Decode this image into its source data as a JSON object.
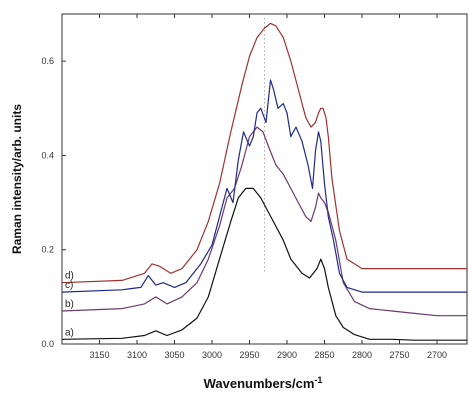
{
  "chart_data": {
    "type": "line",
    "xlabel": "Wavenumbers/cm",
    "xlabel_sup": "-1",
    "ylabel": "Raman intensity/arb. units",
    "xlim": [
      3200,
      2660
    ],
    "ylim": [
      0,
      0.7
    ],
    "x_reversed": true,
    "grid": false,
    "x_ticks": [
      3150,
      3100,
      3050,
      3000,
      2950,
      2900,
      2850,
      2800,
      2750,
      2700
    ],
    "y_ticks": [
      0.0,
      0.2,
      0.4,
      0.6
    ],
    "y_tick_labels": [
      "0.0",
      "0.2",
      "0.4",
      "0.6"
    ],
    "series": [
      {
        "name": "a)",
        "color": "#111111",
        "x": [
          3200,
          3120,
          3090,
          3075,
          3060,
          3040,
          3020,
          3005,
          2990,
          2975,
          2965,
          2955,
          2945,
          2935,
          2925,
          2915,
          2905,
          2895,
          2880,
          2870,
          2860,
          2855,
          2850,
          2845,
          2835,
          2825,
          2810,
          2790,
          2760,
          2730,
          2700,
          2660
        ],
        "y": [
          0.01,
          0.012,
          0.018,
          0.028,
          0.018,
          0.03,
          0.055,
          0.1,
          0.18,
          0.26,
          0.31,
          0.33,
          0.33,
          0.31,
          0.28,
          0.25,
          0.22,
          0.18,
          0.15,
          0.14,
          0.16,
          0.18,
          0.16,
          0.12,
          0.06,
          0.035,
          0.02,
          0.01,
          0.01,
          0.008,
          0.008,
          0.008
        ]
      },
      {
        "name": "b)",
        "color": "#6b3a6b",
        "x": [
          3200,
          3120,
          3090,
          3075,
          3060,
          3040,
          3020,
          3005,
          2990,
          2980,
          2970,
          2960,
          2950,
          2940,
          2932,
          2925,
          2915,
          2905,
          2895,
          2885,
          2875,
          2868,
          2862,
          2858,
          2855,
          2850,
          2845,
          2835,
          2825,
          2810,
          2790,
          2760,
          2730,
          2700,
          2660
        ],
        "y": [
          0.07,
          0.075,
          0.085,
          0.1,
          0.085,
          0.1,
          0.13,
          0.18,
          0.25,
          0.31,
          0.33,
          0.38,
          0.44,
          0.46,
          0.45,
          0.42,
          0.38,
          0.36,
          0.33,
          0.3,
          0.27,
          0.26,
          0.29,
          0.32,
          0.31,
          0.3,
          0.28,
          0.22,
          0.13,
          0.09,
          0.075,
          0.07,
          0.065,
          0.06,
          0.06
        ]
      },
      {
        "name": "c)",
        "color": "#1f2a8a",
        "x": [
          3200,
          3120,
          3095,
          3085,
          3075,
          3065,
          3050,
          3035,
          3015,
          3000,
          2990,
          2980,
          2972,
          2965,
          2958,
          2950,
          2945,
          2940,
          2935,
          2928,
          2922,
          2918,
          2912,
          2905,
          2900,
          2895,
          2888,
          2880,
          2872,
          2866,
          2862,
          2858,
          2855,
          2850,
          2845,
          2838,
          2830,
          2820,
          2800,
          2780,
          2760,
          2730,
          2700,
          2660
        ],
        "y": [
          0.11,
          0.115,
          0.12,
          0.145,
          0.125,
          0.13,
          0.12,
          0.13,
          0.17,
          0.21,
          0.27,
          0.33,
          0.3,
          0.39,
          0.45,
          0.42,
          0.44,
          0.49,
          0.5,
          0.47,
          0.56,
          0.54,
          0.5,
          0.51,
          0.49,
          0.44,
          0.46,
          0.43,
          0.38,
          0.33,
          0.41,
          0.45,
          0.43,
          0.34,
          0.27,
          0.22,
          0.15,
          0.12,
          0.11,
          0.11,
          0.11,
          0.11,
          0.11,
          0.11
        ]
      },
      {
        "name": "d)",
        "color": "#a03232",
        "x": [
          3200,
          3120,
          3090,
          3080,
          3070,
          3055,
          3040,
          3020,
          3005,
          2990,
          2975,
          2960,
          2950,
          2940,
          2930,
          2922,
          2915,
          2905,
          2895,
          2885,
          2875,
          2868,
          2862,
          2858,
          2855,
          2852,
          2848,
          2845,
          2840,
          2830,
          2820,
          2800,
          2780,
          2760,
          2730,
          2700,
          2660
        ],
        "y": [
          0.13,
          0.135,
          0.15,
          0.17,
          0.165,
          0.15,
          0.16,
          0.2,
          0.26,
          0.34,
          0.45,
          0.55,
          0.61,
          0.65,
          0.67,
          0.68,
          0.675,
          0.65,
          0.6,
          0.54,
          0.48,
          0.46,
          0.47,
          0.49,
          0.5,
          0.5,
          0.48,
          0.44,
          0.35,
          0.24,
          0.18,
          0.16,
          0.16,
          0.16,
          0.16,
          0.16,
          0.16
        ]
      }
    ],
    "peak_guide_x": 2930
  }
}
